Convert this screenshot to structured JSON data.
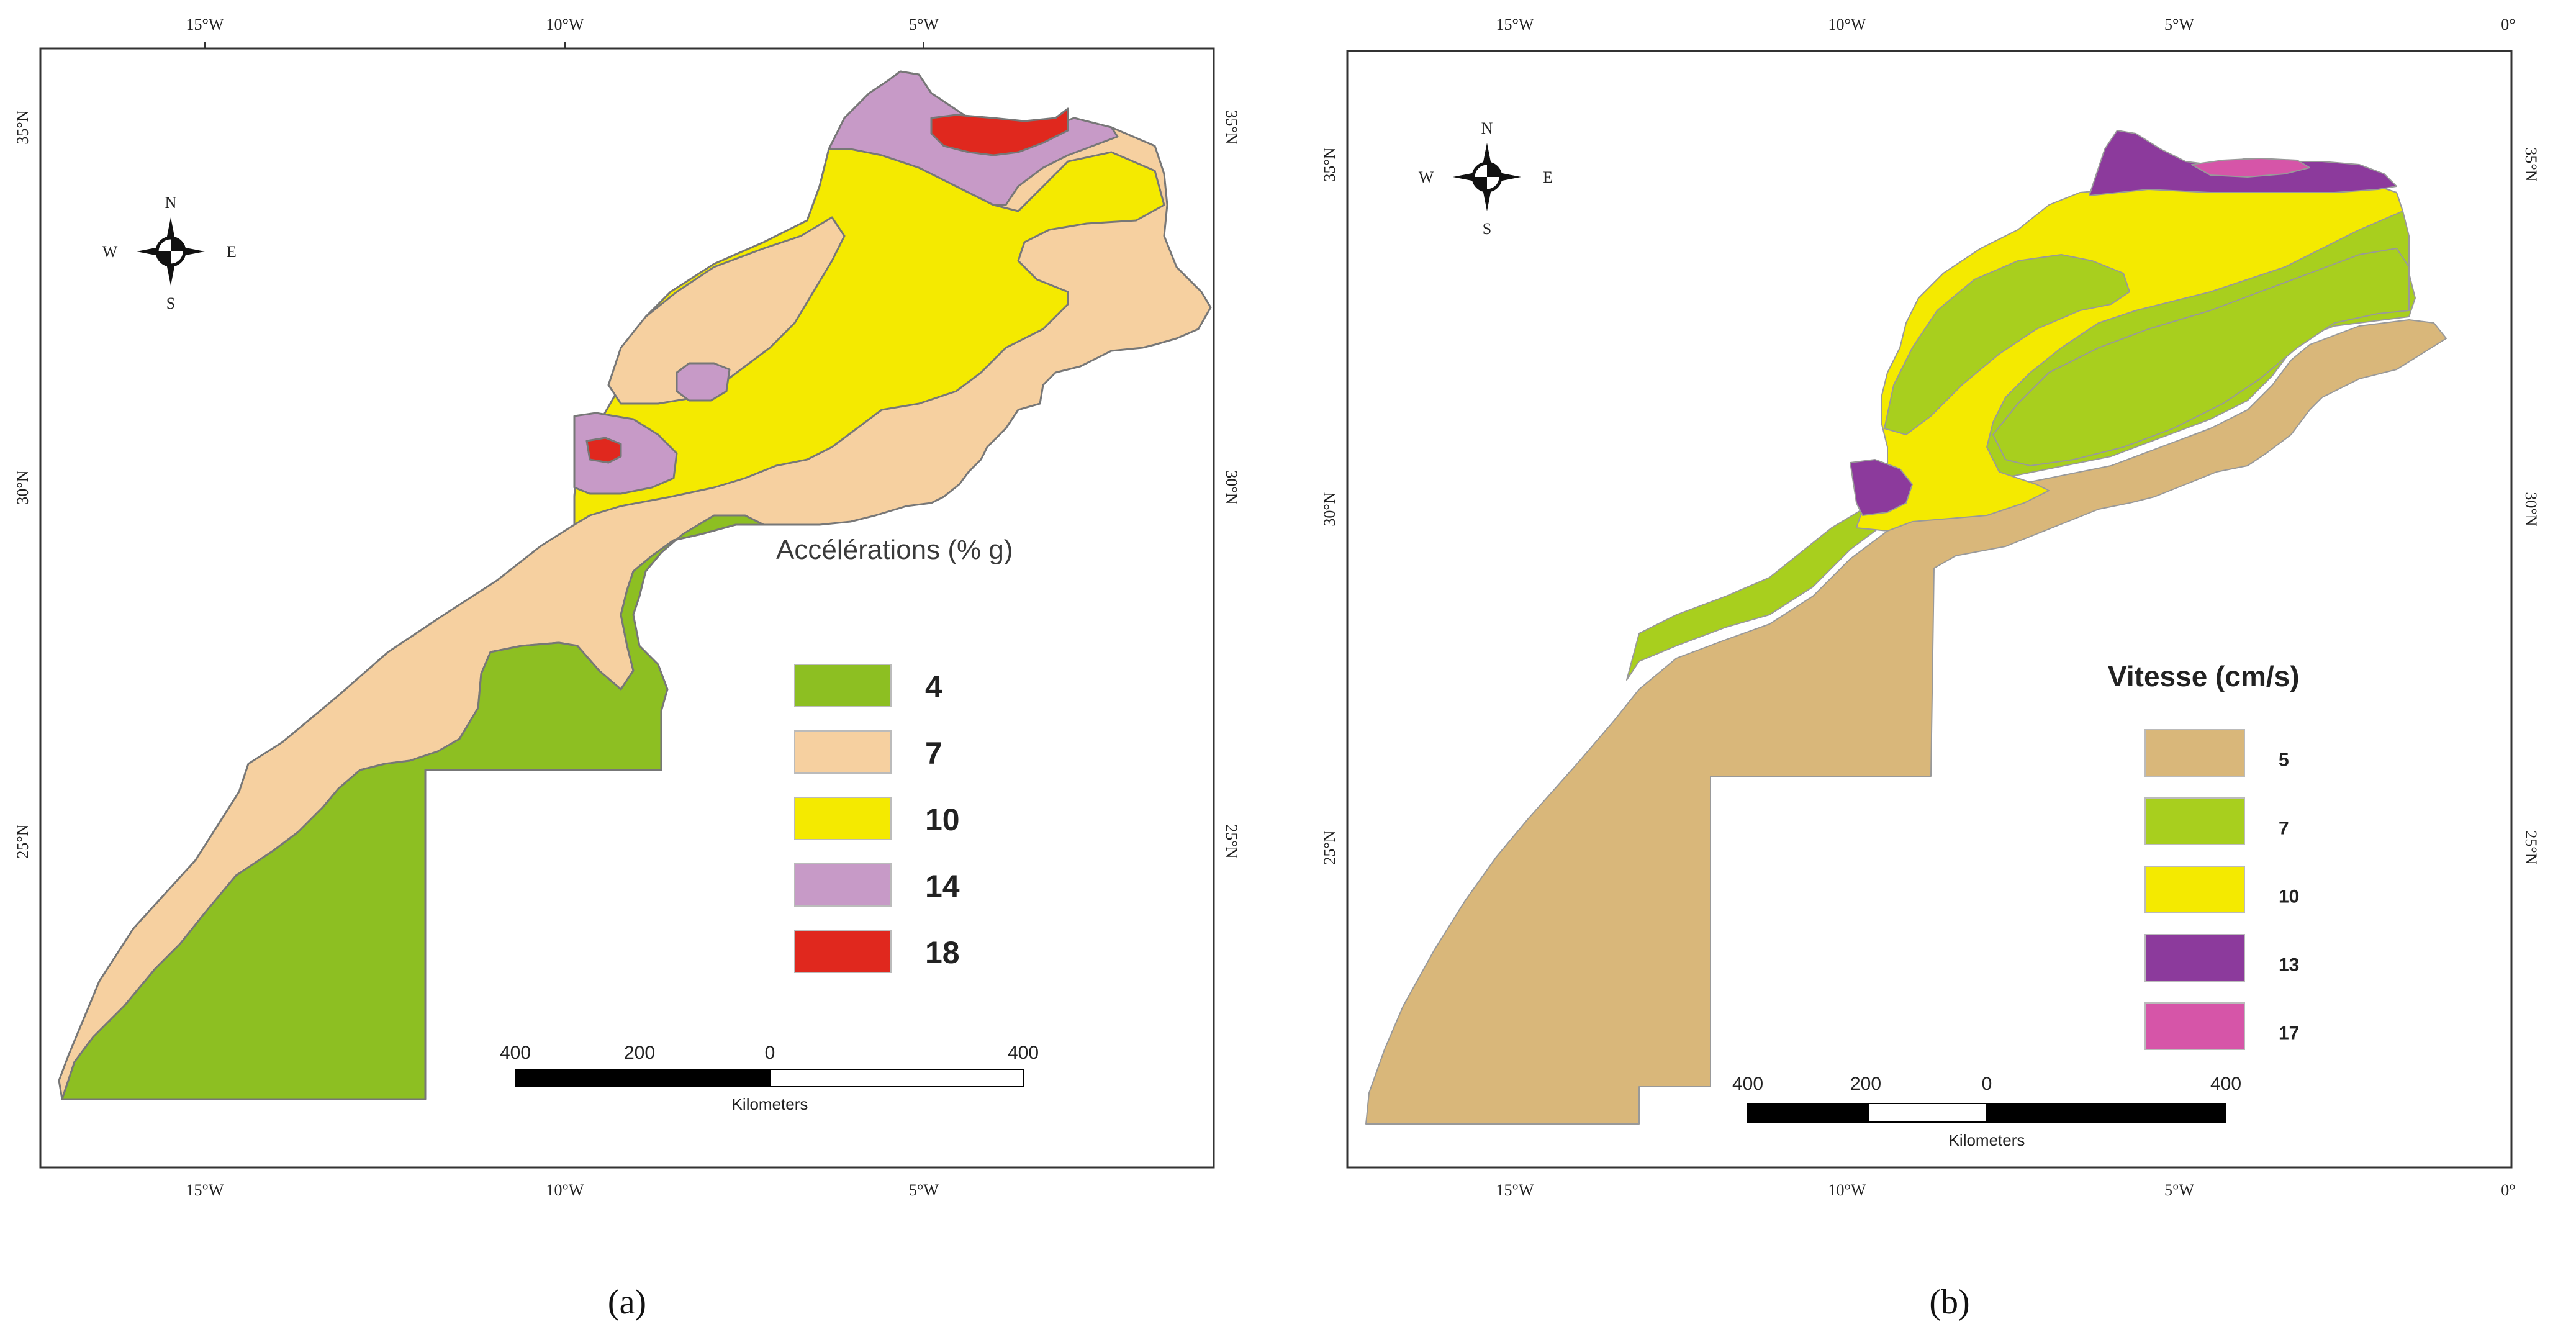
{
  "panels": [
    {
      "caption": "(a)",
      "legend_title": "Accélérations (% g)",
      "legend": [
        {
          "label": "4",
          "color": "#8dbf22"
        },
        {
          "label": "7",
          "color": "#f6d0a0"
        },
        {
          "label": "10",
          "color": "#f4ea00"
        },
        {
          "label": "14",
          "color": "#c79ac7"
        },
        {
          "label": "18",
          "color": "#e0281e"
        }
      ],
      "top_ticks": [
        "15°W",
        "10°W",
        "5°W"
      ],
      "bottom_ticks": [
        "15°W",
        "10°W",
        "5°W"
      ],
      "left_ticks": [
        "35°N",
        "30°N",
        "25°N"
      ],
      "right_ticks": [
        "35°N",
        "30°N",
        "25°N"
      ],
      "scale": {
        "labels": [
          "400",
          "200",
          "0",
          "400"
        ],
        "unit": "Kilometers"
      },
      "compass": {
        "n": "N",
        "s": "S",
        "e": "E",
        "w": "W"
      }
    },
    {
      "caption": "(b)",
      "legend_title": "Vitesse (cm/s)",
      "legend": [
        {
          "label": "5",
          "color": "#d9b77a"
        },
        {
          "label": "7",
          "color": "#a8cf1e"
        },
        {
          "label": "10",
          "color": "#f4ea00"
        },
        {
          "label": "13",
          "color": "#8c3a9c"
        },
        {
          "label": "17",
          "color": "#d655a8"
        }
      ],
      "top_ticks": [
        "15°W",
        "10°W",
        "5°W",
        "0°"
      ],
      "bottom_ticks": [
        "15°W",
        "10°W",
        "5°W",
        "0°"
      ],
      "left_ticks": [
        "35°N",
        "30°N",
        "25°N"
      ],
      "right_ticks": [
        "35°N",
        "30°N",
        "25°N"
      ],
      "scale": {
        "labels": [
          "400",
          "200",
          "0",
          "400"
        ],
        "unit": "Kilometers"
      },
      "compass": {
        "n": "N",
        "s": "S",
        "e": "E",
        "w": "W"
      }
    }
  ]
}
